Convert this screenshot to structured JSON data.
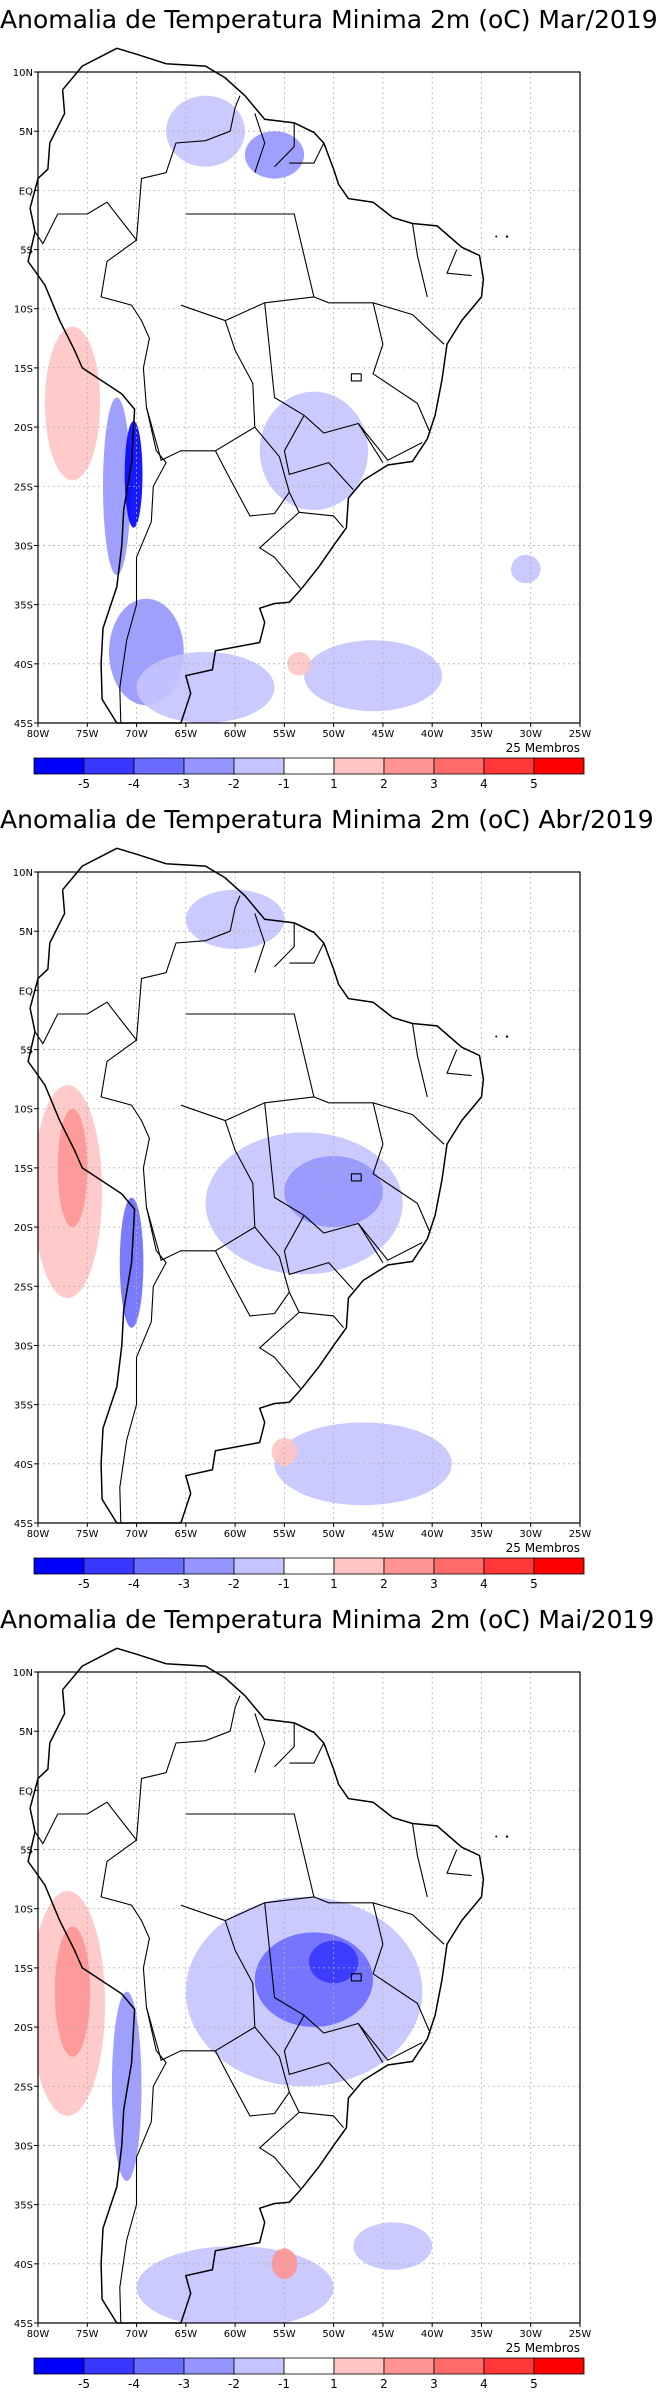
{
  "panels": [
    {
      "title": "Anomalia de Temperatura Minima 2m (oC) Mar/2019",
      "members": "25 Membros",
      "blobs": [
        {
          "lon": -76.5,
          "lat": -18.0,
          "rlon": 2.8,
          "rlat": 6.5,
          "val": 1.5
        },
        {
          "lon": -72.0,
          "lat": -25.0,
          "rlon": 1.4,
          "rlat": 7.5,
          "val": -2.5
        },
        {
          "lon": -70.3,
          "lat": -24.0,
          "rlon": 0.9,
          "rlat": 4.5,
          "val": -5
        },
        {
          "lon": -69.0,
          "lat": -39.0,
          "rlon": 3.8,
          "rlat": 4.5,
          "val": -2.5
        },
        {
          "lon": -63.0,
          "lat": -42.0,
          "rlon": 7.0,
          "rlat": 3.0,
          "val": -1.5
        },
        {
          "lon": -46.0,
          "lat": -41.0,
          "rlon": 7.0,
          "rlat": 3.0,
          "val": -1.5
        },
        {
          "lon": -52.0,
          "lat": -22.0,
          "rlon": 5.5,
          "rlat": 5.0,
          "val": -1.5
        },
        {
          "lon": -63.0,
          "lat": 5.0,
          "rlon": 4.0,
          "rlat": 3.0,
          "val": -1.5
        },
        {
          "lon": -56.0,
          "lat": 3.0,
          "rlon": 3.0,
          "rlat": 2.0,
          "val": -2.5
        },
        {
          "lon": -53.5,
          "lat": -40.0,
          "rlon": 1.2,
          "rlat": 1.0,
          "val": 1.5
        },
        {
          "lon": -30.5,
          "lat": -32.0,
          "rlon": 1.5,
          "rlat": 1.2,
          "val": -1.5
        }
      ]
    },
    {
      "title": "Anomalia de Temperatura Minima 2m (oC) Abr/2019",
      "members": "25 Membros",
      "blobs": [
        {
          "lon": -77.0,
          "lat": -17.0,
          "rlon": 3.5,
          "rlat": 9.0,
          "val": 1.5
        },
        {
          "lon": -76.5,
          "lat": -15.0,
          "rlon": 1.5,
          "rlat": 5.0,
          "val": 2.5
        },
        {
          "lon": -70.5,
          "lat": -23.0,
          "rlon": 1.2,
          "rlat": 5.5,
          "val": -3.5
        },
        {
          "lon": -53.0,
          "lat": -18.0,
          "rlon": 10.0,
          "rlat": 6.0,
          "val": -1.5
        },
        {
          "lon": -50.0,
          "lat": -17.0,
          "rlon": 5.0,
          "rlat": 3.0,
          "val": -2.5
        },
        {
          "lon": -47.0,
          "lat": -40.0,
          "rlon": 9.0,
          "rlat": 3.5,
          "val": -1.5
        },
        {
          "lon": -55.0,
          "lat": -39.0,
          "rlon": 1.3,
          "rlat": 1.2,
          "val": 1.5
        },
        {
          "lon": -60.0,
          "lat": 6.0,
          "rlon": 5.0,
          "rlat": 2.5,
          "val": -1.5
        }
      ]
    },
    {
      "title": "Anomalia de Temperatura Minima 2m (oC) Mai/2019",
      "members": "25 Membros",
      "blobs": [
        {
          "lon": -77.0,
          "lat": -18.0,
          "rlon": 3.8,
          "rlat": 9.5,
          "val": 1.5
        },
        {
          "lon": -76.5,
          "lat": -17.0,
          "rlon": 1.8,
          "rlat": 5.5,
          "val": 2.5
        },
        {
          "lon": -71.0,
          "lat": -25.0,
          "rlon": 1.5,
          "rlat": 8.0,
          "val": -2.5
        },
        {
          "lon": -53.0,
          "lat": -17.0,
          "rlon": 12.0,
          "rlat": 8.0,
          "val": -1.5
        },
        {
          "lon": -52.0,
          "lat": -16.0,
          "rlon": 6.0,
          "rlat": 4.0,
          "val": -3
        },
        {
          "lon": -50.0,
          "lat": -14.5,
          "rlon": 2.5,
          "rlat": 1.8,
          "val": -4
        },
        {
          "lon": -60.0,
          "lat": -42.0,
          "rlon": 10.0,
          "rlat": 3.5,
          "val": -1.5
        },
        {
          "lon": -55.0,
          "lat": -40.0,
          "rlon": 1.3,
          "rlat": 1.3,
          "val": 2.5
        },
        {
          "lon": -44.0,
          "lat": -38.5,
          "rlon": 4.0,
          "rlat": 2.0,
          "val": -1.5
        }
      ]
    }
  ],
  "axes": {
    "lon_ticks": [
      "80W",
      "75W",
      "70W",
      "65W",
      "60W",
      "55W",
      "50W",
      "45W",
      "40W",
      "35W",
      "30W",
      "25W"
    ],
    "lat_ticks": [
      "10N",
      "5N",
      "EQ",
      "5S",
      "10S",
      "15S",
      "20S",
      "25S",
      "30S",
      "35S",
      "40S",
      "45S"
    ],
    "lon_range": [
      -80,
      -25
    ],
    "lat_range": [
      -45,
      10
    ]
  },
  "legend": {
    "labels": [
      "-5",
      "-4",
      "-3",
      "-2",
      "-1",
      "1",
      "2",
      "3",
      "4",
      "5"
    ],
    "colors": [
      "#0000ff",
      "#3737ff",
      "#6b6bff",
      "#9595ff",
      "#c4c4ff",
      "#ffffff",
      "#ffc4c4",
      "#ff9595",
      "#ff6b6b",
      "#ff3737",
      "#ff0000"
    ]
  }
}
